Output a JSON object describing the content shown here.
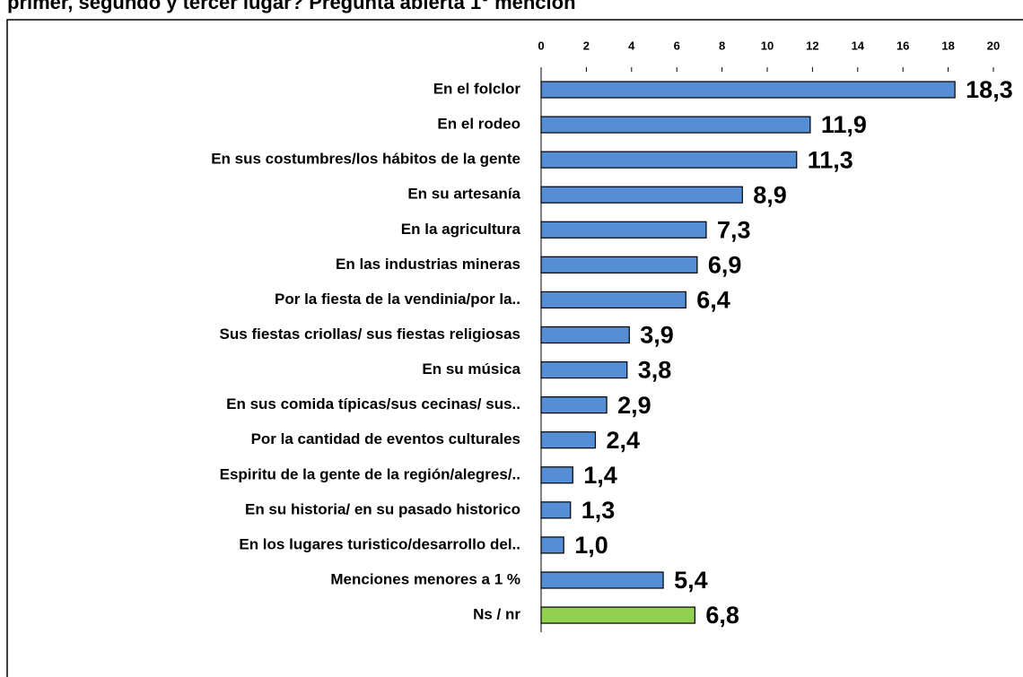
{
  "chart_data": {
    "type": "bar",
    "orientation": "horizontal",
    "title": "primer, segundo y tercer lugar?  Pregunta abierta 1° mención",
    "categories": [
      "En el folclor",
      "En el rodeo",
      "En sus costumbres/los hábitos de la gente",
      "En su artesanía",
      "En la agricultura",
      "En las industrias mineras",
      "Por la fiesta de la vendinia/por la..",
      "Sus fiestas criollas/ sus fiestas religiosas",
      "En su música",
      "En sus comida típicas/sus cecinas/ sus..",
      "Por la cantidad de eventos culturales",
      "Espiritu de la gente de la región/alegres/..",
      "En su historia/ en su pasado historico",
      "En los lugares turistico/desarrollo del..",
      "Menciones menores a 1 %",
      "Ns / nr"
    ],
    "values": [
      18.3,
      11.9,
      11.3,
      8.9,
      7.3,
      6.9,
      6.4,
      3.9,
      3.8,
      2.9,
      2.4,
      1.4,
      1.3,
      1.0,
      5.4,
      6.8
    ],
    "value_labels": [
      "18,3",
      "11,9",
      "11,3",
      "8,9",
      "7,3",
      "6,9",
      "6,4",
      "3,9",
      "3,8",
      "2,9",
      "2,4",
      "1,4",
      "1,3",
      "1,0",
      "5,4",
      "6,8"
    ],
    "colors": [
      "#558ed5",
      "#558ed5",
      "#558ed5",
      "#558ed5",
      "#558ed5",
      "#558ed5",
      "#558ed5",
      "#558ed5",
      "#558ed5",
      "#558ed5",
      "#558ed5",
      "#558ed5",
      "#558ed5",
      "#558ed5",
      "#558ed5",
      "#92d050"
    ],
    "xlim": [
      0,
      20
    ],
    "xticks": [
      0,
      2,
      4,
      6,
      8,
      10,
      12,
      14,
      16,
      18,
      20
    ]
  }
}
